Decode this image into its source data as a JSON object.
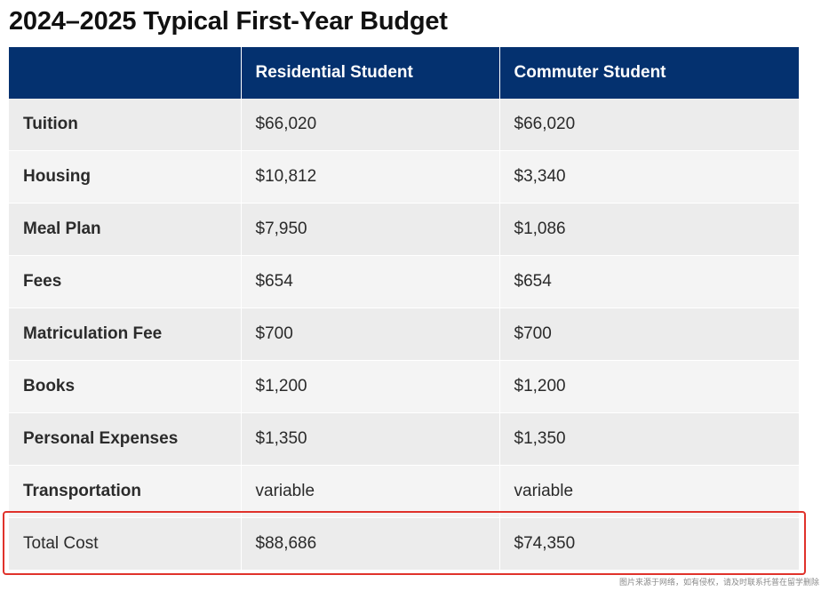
{
  "title": "2024–2025 Typical First-Year Budget",
  "table": {
    "headers": [
      "",
      "Residential Student",
      "Commuter Student"
    ],
    "rows": [
      {
        "label": "Tuition",
        "residential": "$66,020",
        "commuter": "$66,020"
      },
      {
        "label": "Housing",
        "residential": "$10,812",
        "commuter": "$3,340"
      },
      {
        "label": "Meal Plan",
        "residential": "$7,950",
        "commuter": "$1,086"
      },
      {
        "label": "Fees",
        "residential": "$654",
        "commuter": "$654"
      },
      {
        "label": "Matriculation Fee",
        "residential": "$700",
        "commuter": "$700"
      },
      {
        "label": "Books",
        "residential": "$1,200",
        "commuter": "$1,200"
      },
      {
        "label": "Personal Expenses",
        "residential": "$1,350",
        "commuter": "$1,350"
      },
      {
        "label": "Transportation",
        "residential": "variable",
        "commuter": "variable"
      },
      {
        "label": "Total Cost",
        "residential": "$88,686",
        "commuter": "$74,350"
      }
    ]
  },
  "watermark": "图片来源于网络，如有侵权，请及时联系托普在留学删除",
  "colors": {
    "header_bg": "#04316f",
    "header_text": "#ffffff",
    "row_odd": "#ececec",
    "row_even": "#f4f4f4",
    "highlight": "#e0322b"
  }
}
